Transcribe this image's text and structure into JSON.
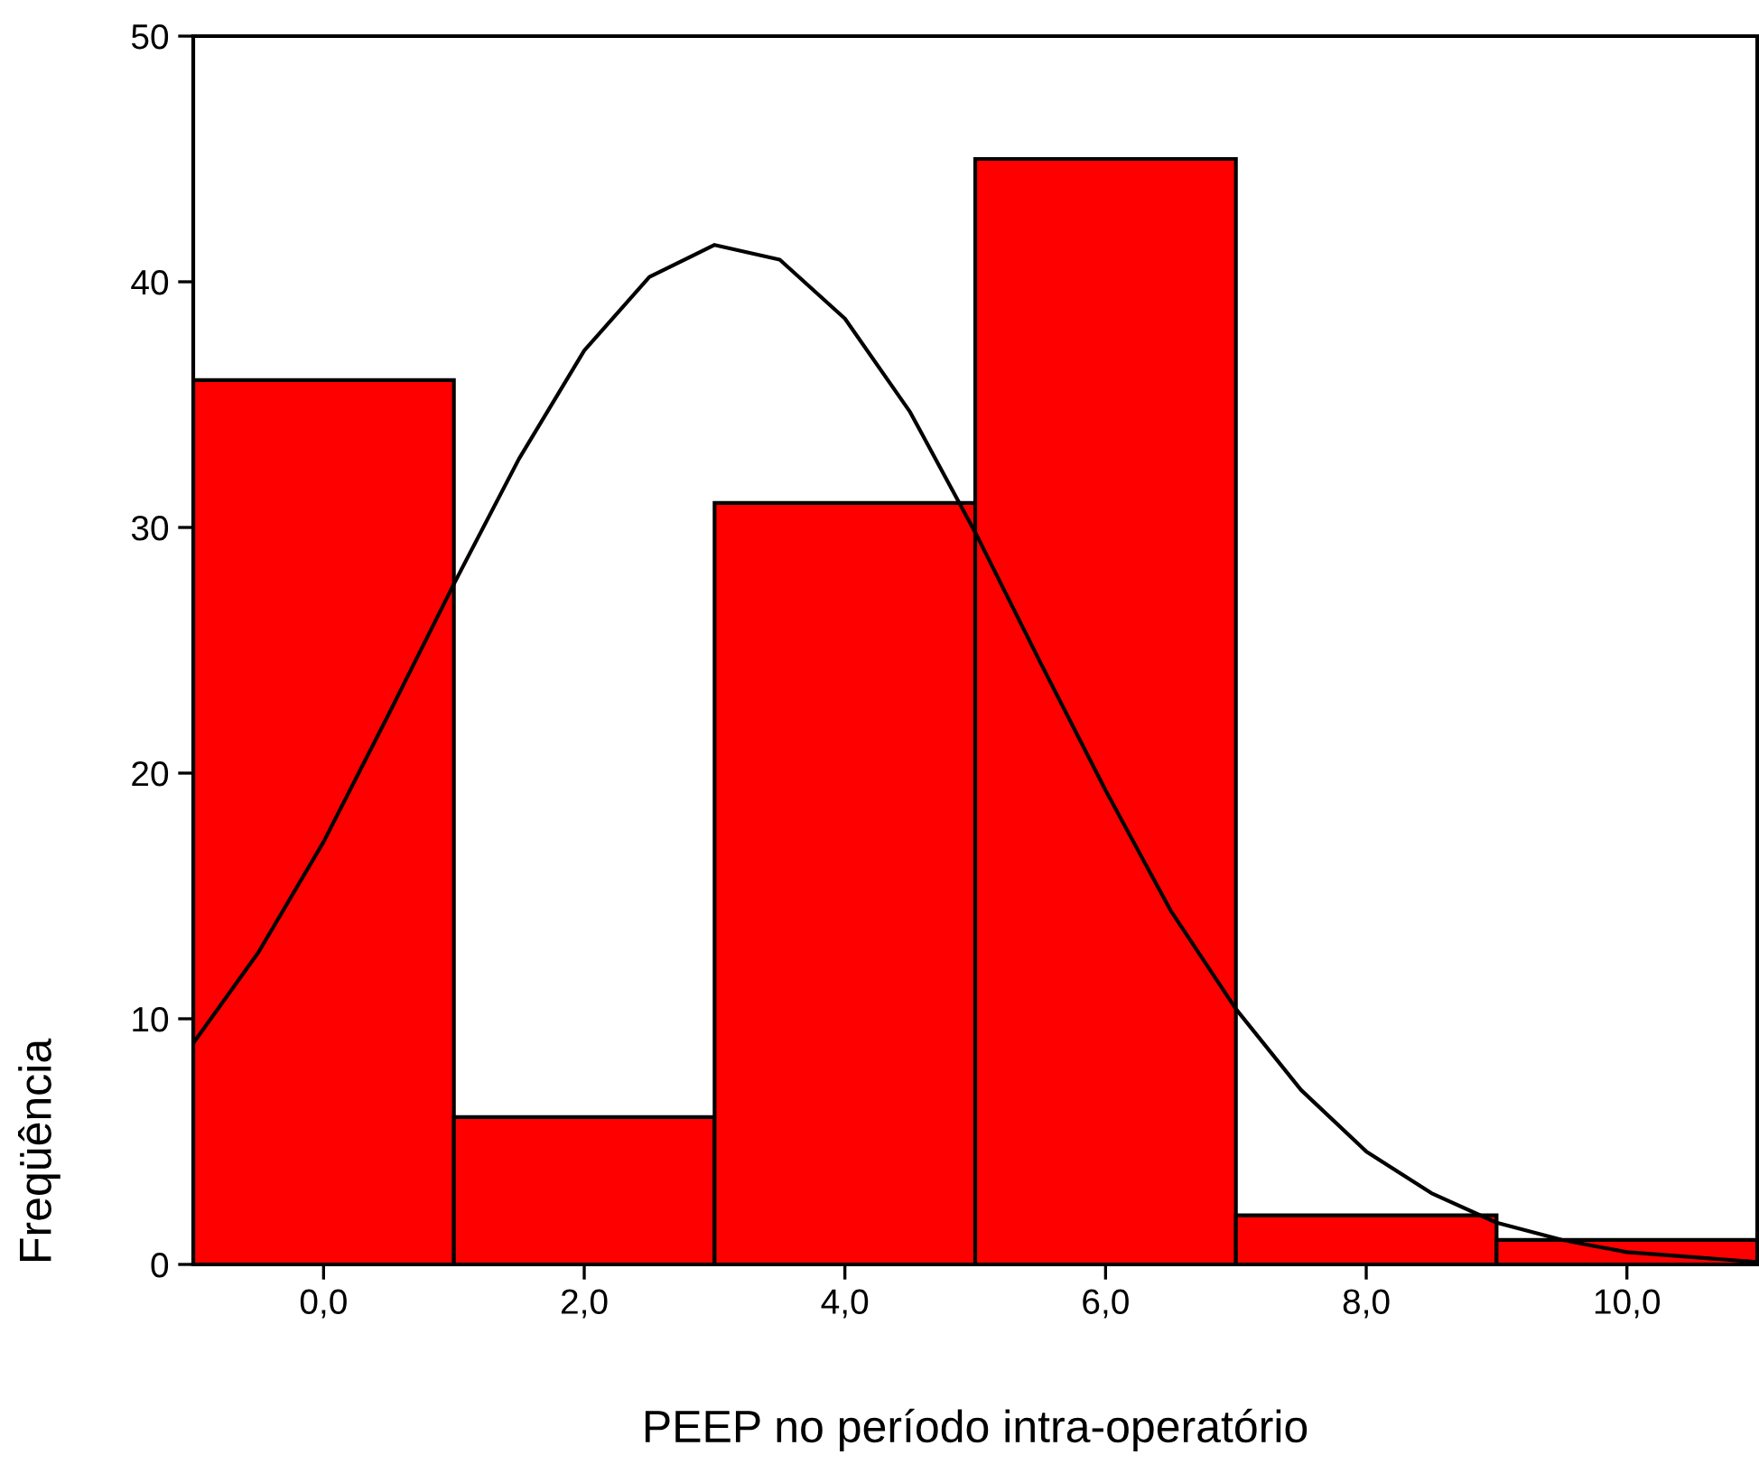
{
  "chart_data": {
    "type": "histogram",
    "xlabel": "PEEP no período intra-operatório",
    "ylabel": "Freqüência",
    "bins": [
      -1,
      1,
      3,
      5,
      7,
      9,
      11
    ],
    "values": [
      36,
      6,
      31,
      45,
      2,
      1
    ],
    "color": "#ff0000",
    "series": [
      {
        "type": "line",
        "color": "#000000",
        "x": [
          -1,
          -0.5,
          0,
          0.5,
          1,
          1.5,
          2,
          2.5,
          3,
          3.5,
          4,
          4.5,
          5,
          5.5,
          6,
          6.5,
          7,
          7.5,
          8,
          8.5,
          9,
          9.5,
          10,
          10.5,
          11
        ],
        "values": [
          9.0,
          12.7,
          17.2,
          22.4,
          27.7,
          32.8,
          37.2,
          40.2,
          41.5,
          40.9,
          38.5,
          34.7,
          29.8,
          24.5,
          19.3,
          14.4,
          10.4,
          7.1,
          4.6,
          2.9,
          1.7,
          1.0,
          0.5,
          0.3,
          0.1
        ]
      }
    ],
    "xlim": [
      -1,
      11
    ],
    "ylim": [
      0,
      50
    ],
    "xticks": [
      {
        "value": 0,
        "label": "0,0"
      },
      {
        "value": 2,
        "label": "2,0"
      },
      {
        "value": 4,
        "label": "4,0"
      },
      {
        "value": 6,
        "label": "6,0"
      },
      {
        "value": 8,
        "label": "8,0"
      },
      {
        "value": 10,
        "label": "10,0"
      }
    ],
    "yticks": [
      0,
      10,
      20,
      30,
      40,
      50
    ],
    "grid": false,
    "legend": false
  }
}
